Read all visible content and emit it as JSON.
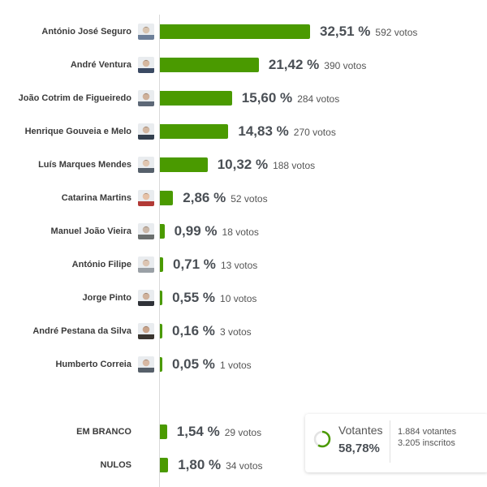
{
  "chart_data": {
    "type": "bar",
    "orientation": "horizontal",
    "categories": [
      "António José Seguro",
      "André Ventura",
      "João Cotrim de Figueiredo",
      "Henrique Gouveia e Melo",
      "Luís Marques Mendes",
      "Catarina Martins",
      "Manuel João Vieira",
      "António Filipe",
      "Jorge Pinto",
      "André Pestana da Silva",
      "Humberto Correia",
      "EM BRANCO",
      "NULOS"
    ],
    "values": [
      32.51,
      21.42,
      15.6,
      14.83,
      10.32,
      2.86,
      0.99,
      0.71,
      0.55,
      0.16,
      0.05,
      1.54,
      1.8
    ],
    "value_labels": [
      "32,51 %",
      "21,42 %",
      "15,60 %",
      "14,83 %",
      "10,32 %",
      "2,86 %",
      "0,99 %",
      "0,71 %",
      "0,55 %",
      "0,16 %",
      "0,05 %",
      "1,54 %",
      "1,80 %"
    ],
    "votes": [
      "592 votos",
      "390 votos",
      "284 votos",
      "270 votos",
      "188 votos",
      "52 votos",
      "18 votos",
      "13 votos",
      "10 votos",
      "3 votos",
      "1 votos",
      "29 votos",
      "34 votos"
    ],
    "has_avatar": [
      true,
      true,
      true,
      true,
      true,
      true,
      true,
      true,
      true,
      true,
      true,
      false,
      false
    ],
    "bar_color": "#4a9a00",
    "grid": false,
    "legend": "none"
  },
  "turnout": {
    "label": "Votantes",
    "percent_text": "58,78%",
    "percent": 58.78,
    "voters_text": "1.884 votantes",
    "registered_text": "3.205 inscritos",
    "ring_color": "#4a9a00",
    "ring_track_color": "#e3e3e3"
  }
}
